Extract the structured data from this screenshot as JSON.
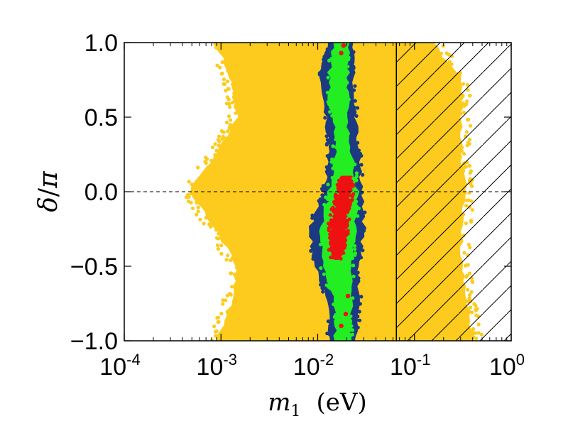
{
  "chart_data": {
    "type": "scatter",
    "title": "",
    "xlabel": {
      "symbol": "m",
      "subscript": "1",
      "unit": "(eV)"
    },
    "ylabel": {
      "symbol": "δ",
      "denominator": "π"
    },
    "xscale": "log",
    "xlim": [
      0.0001,
      1
    ],
    "ylim": [
      -1,
      1
    ],
    "x_ticks": [
      {
        "value": 0.0001,
        "base": "10",
        "exp": "-4"
      },
      {
        "value": 0.001,
        "base": "10",
        "exp": "-3"
      },
      {
        "value": 0.01,
        "base": "10",
        "exp": "-2"
      },
      {
        "value": 0.1,
        "base": "10",
        "exp": "-1"
      },
      {
        "value": 1,
        "base": "10",
        "exp": "0"
      }
    ],
    "y_ticks": [
      {
        "value": 1.0,
        "label": "1.0"
      },
      {
        "value": 0.5,
        "label": "0.5"
      },
      {
        "value": 0.0,
        "label": "0.0"
      },
      {
        "value": -0.5,
        "label": "−0.5"
      },
      {
        "value": -1.0,
        "label": "−1.0"
      }
    ],
    "reference_line": {
      "y": 0,
      "style": "dashed"
    },
    "excluded_region": {
      "x_min": 0.065,
      "x_max": 1,
      "style": "hatched"
    },
    "series": [
      {
        "name": "yellow",
        "color": "#fccb1d",
        "shape": "band",
        "profile": [
          {
            "y": -1.0,
            "x_min": 0.0009,
            "x_max": 0.4
          },
          {
            "y": -0.75,
            "x_min": 0.0013,
            "x_max": 0.35
          },
          {
            "y": -0.5,
            "x_min": 0.0015,
            "x_max": 0.3
          },
          {
            "y": -0.25,
            "x_min": 0.0009,
            "x_max": 0.3
          },
          {
            "y": 0.0,
            "x_min": 0.00048,
            "x_max": 0.33
          },
          {
            "y": 0.25,
            "x_min": 0.0009,
            "x_max": 0.3
          },
          {
            "y": 0.5,
            "x_min": 0.0015,
            "x_max": 0.3
          },
          {
            "y": 0.75,
            "x_min": 0.0013,
            "x_max": 0.3
          },
          {
            "y": 1.0,
            "x_min": 0.0009,
            "x_max": 0.15
          }
        ]
      },
      {
        "name": "navy",
        "color": "#1b3a82",
        "shape": "band",
        "profile": [
          {
            "y": -1.0,
            "x_min": 0.0135,
            "x_max": 0.024
          },
          {
            "y": -0.75,
            "x_min": 0.0135,
            "x_max": 0.026
          },
          {
            "y": -0.5,
            "x_min": 0.0095,
            "x_max": 0.026
          },
          {
            "y": -0.25,
            "x_min": 0.0085,
            "x_max": 0.029
          },
          {
            "y": 0.0,
            "x_min": 0.0118,
            "x_max": 0.028
          },
          {
            "y": 0.25,
            "x_min": 0.0135,
            "x_max": 0.026
          },
          {
            "y": 0.5,
            "x_min": 0.0125,
            "x_max": 0.024
          },
          {
            "y": 0.75,
            "x_min": 0.0105,
            "x_max": 0.023
          },
          {
            "y": 1.0,
            "x_min": 0.0135,
            "x_max": 0.022
          }
        ]
      },
      {
        "name": "green",
        "color": "#22ee22",
        "shape": "band",
        "profile": [
          {
            "y": -1.0,
            "x_min": 0.0155,
            "x_max": 0.021
          },
          {
            "y": -0.75,
            "x_min": 0.0155,
            "x_max": 0.022
          },
          {
            "y": -0.5,
            "x_min": 0.0115,
            "x_max": 0.022
          },
          {
            "y": -0.25,
            "x_min": 0.011,
            "x_max": 0.024
          },
          {
            "y": 0.0,
            "x_min": 0.0135,
            "x_max": 0.025
          },
          {
            "y": 0.25,
            "x_min": 0.0155,
            "x_max": 0.022
          },
          {
            "y": 0.4,
            "x_min": 0.0155,
            "x_max": 0.02
          },
          {
            "y": 0.6,
            "x_min": 0.0135,
            "x_max": 0.02
          },
          {
            "y": 0.8,
            "x_min": 0.0135,
            "x_max": 0.02
          },
          {
            "y": 1.0,
            "x_min": 0.0155,
            "x_max": 0.02
          }
        ]
      },
      {
        "name": "red",
        "color": "#ee1111",
        "shape": "band",
        "profile": [
          {
            "y": -0.45,
            "x_min": 0.0145,
            "x_max": 0.017
          },
          {
            "y": -0.3,
            "x_min": 0.0135,
            "x_max": 0.019
          },
          {
            "y": -0.15,
            "x_min": 0.0145,
            "x_max": 0.02
          },
          {
            "y": 0.0,
            "x_min": 0.0165,
            "x_max": 0.022
          },
          {
            "y": 0.1,
            "x_min": 0.0185,
            "x_max": 0.0215
          }
        ],
        "extra_points": [
          {
            "x": 0.0185,
            "y": 0.98
          },
          {
            "x": 0.0175,
            "y": 0.93
          },
          {
            "x": 0.0195,
            "y": -0.82
          },
          {
            "x": 0.0205,
            "y": -0.7
          },
          {
            "x": 0.0175,
            "y": -0.9
          }
        ]
      }
    ]
  }
}
